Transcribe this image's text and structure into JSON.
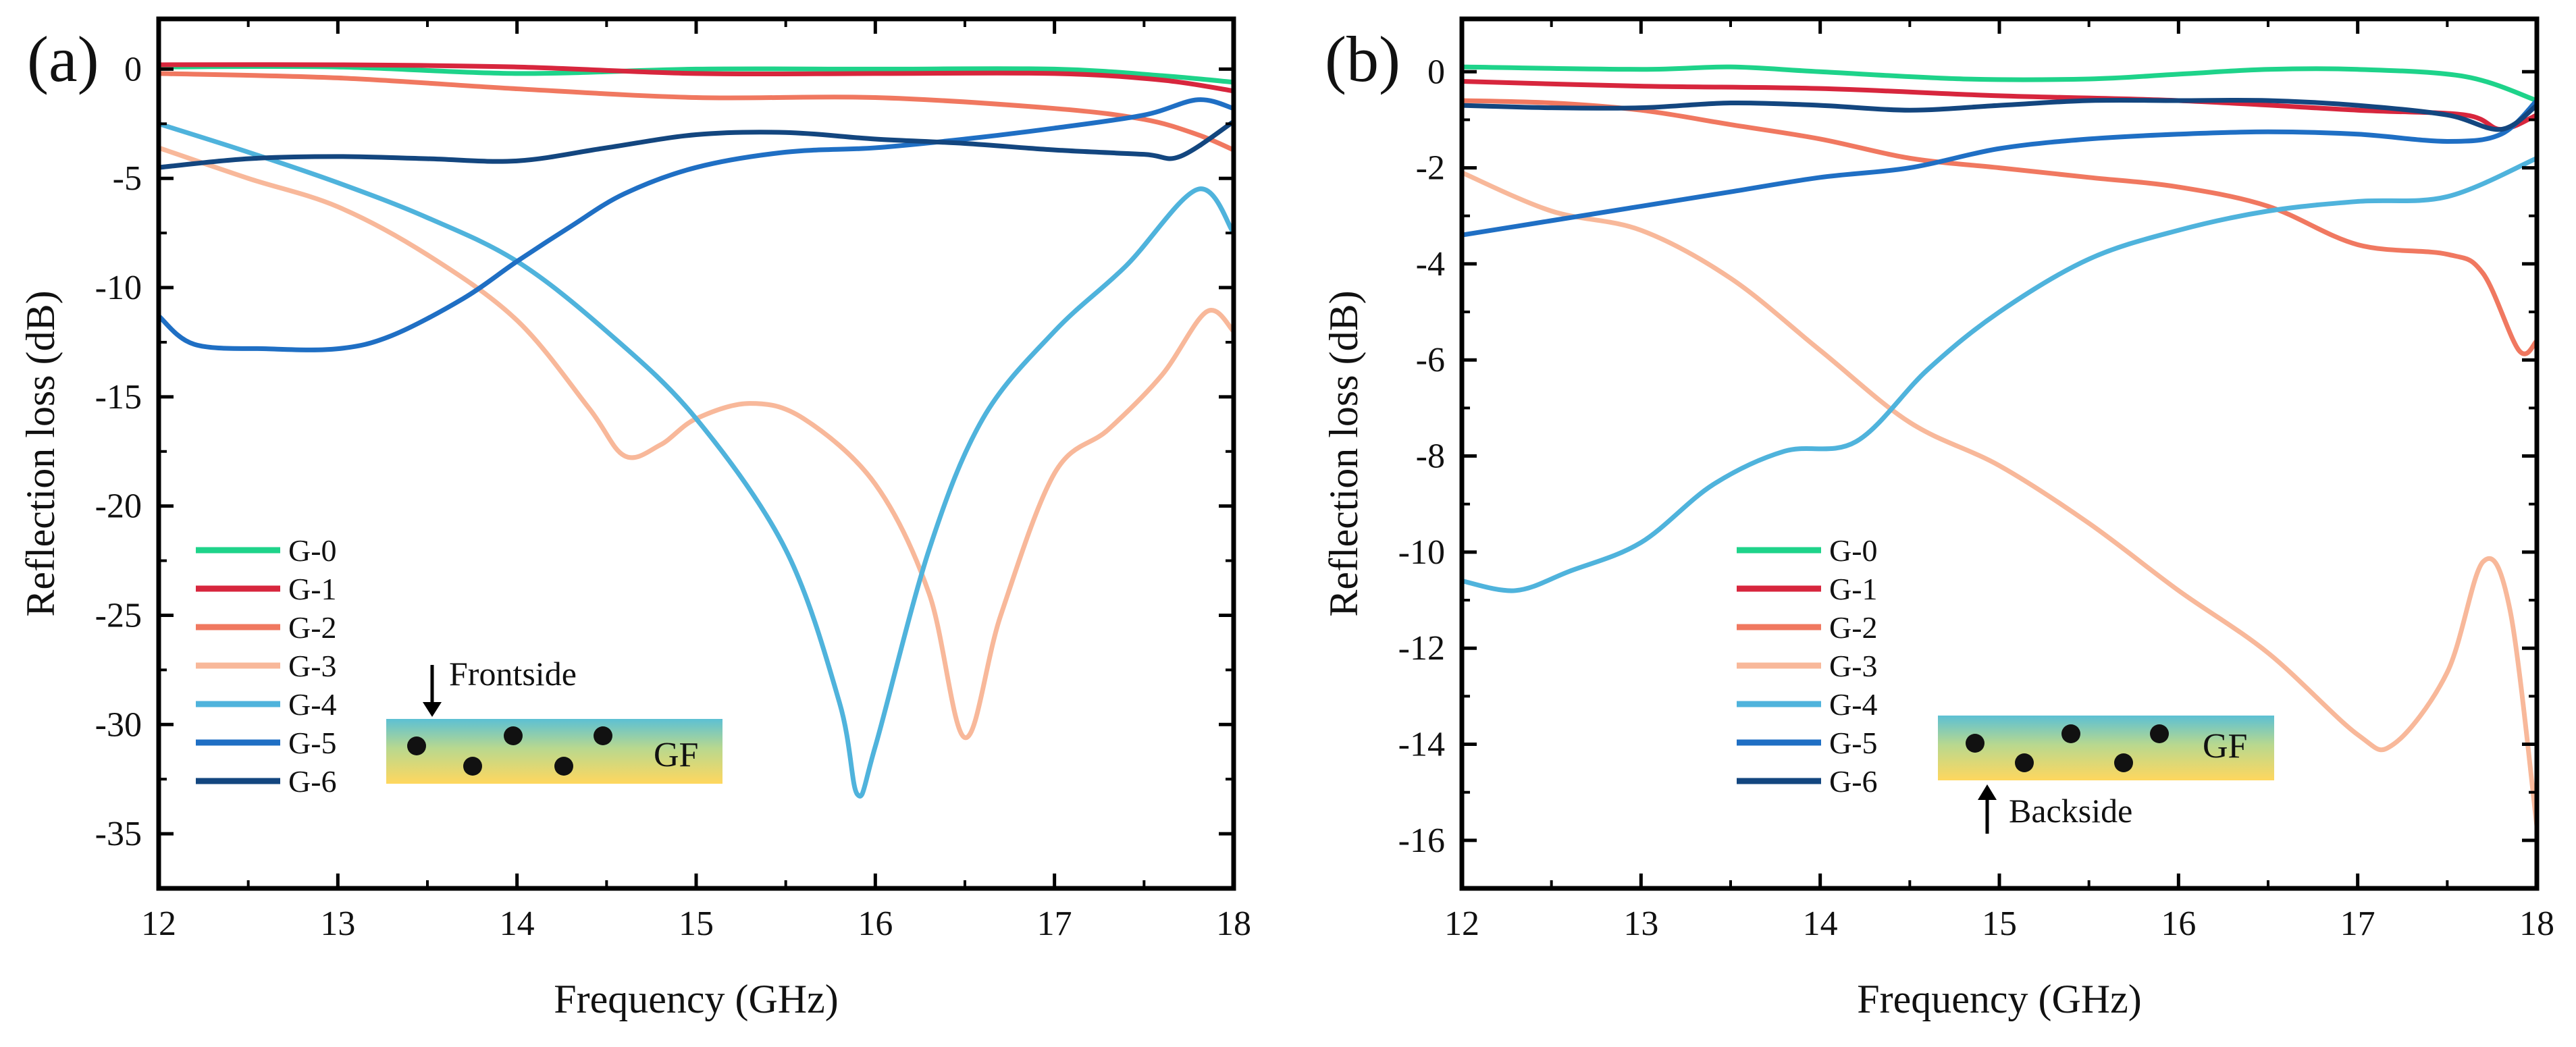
{
  "chart_data": [
    {
      "type": "line",
      "panel_label": "(a)",
      "xlabel": "Frequency (GHz)",
      "ylabel": "Reflection loss (dB)",
      "xlim": [
        12,
        18
      ],
      "ylim": [
        -37.5,
        2.3
      ],
      "xticks": [
        12,
        13,
        14,
        15,
        16,
        17,
        18
      ],
      "yticks": [
        0,
        -5,
        -10,
        -15,
        -20,
        -25,
        -30,
        -35
      ],
      "legend_position": "bottom-left",
      "series": [
        {
          "name": "G-0",
          "color": "#1ed38a",
          "points": [
            [
              12,
              0.1
            ],
            [
              13,
              0.1
            ],
            [
              14,
              -0.2
            ],
            [
              15,
              0
            ],
            [
              16,
              0
            ],
            [
              17,
              0
            ],
            [
              17.6,
              -0.3
            ],
            [
              18,
              -0.6
            ]
          ]
        },
        {
          "name": "G-1",
          "color": "#d7263d",
          "points": [
            [
              12,
              0.2
            ],
            [
              13,
              0.2
            ],
            [
              14,
              0.1
            ],
            [
              15,
              -0.2
            ],
            [
              16,
              -0.2
            ],
            [
              17,
              -0.2
            ],
            [
              17.6,
              -0.5
            ],
            [
              18,
              -1
            ]
          ]
        },
        {
          "name": "G-2",
          "color": "#f07860",
          "points": [
            [
              12,
              -0.2
            ],
            [
              13,
              -0.4
            ],
            [
              14,
              -0.9
            ],
            [
              15,
              -1.3
            ],
            [
              16,
              -1.3
            ],
            [
              17,
              -1.8
            ],
            [
              17.5,
              -2.3
            ],
            [
              17.8,
              -3
            ],
            [
              18,
              -3.7
            ]
          ]
        },
        {
          "name": "G-3",
          "color": "#f8b89a",
          "points": [
            [
              12,
              -3.6
            ],
            [
              12.5,
              -5
            ],
            [
              13,
              -6.3
            ],
            [
              13.5,
              -8.5
            ],
            [
              14,
              -11.5
            ],
            [
              14.4,
              -15.5
            ],
            [
              14.6,
              -17.7
            ],
            [
              14.8,
              -17.2
            ],
            [
              15,
              -16
            ],
            [
              15.3,
              -15.3
            ],
            [
              15.6,
              -16
            ],
            [
              16,
              -19
            ],
            [
              16.3,
              -24
            ],
            [
              16.5,
              -30.6
            ],
            [
              16.7,
              -25
            ],
            [
              17,
              -18.5
            ],
            [
              17.3,
              -16.5
            ],
            [
              17.6,
              -14
            ],
            [
              17.85,
              -11.1
            ],
            [
              18,
              -12
            ]
          ]
        },
        {
          "name": "G-4",
          "color": "#4fb3dc",
          "points": [
            [
              12,
              -2.5
            ],
            [
              12.5,
              -3.8
            ],
            [
              13,
              -5.2
            ],
            [
              13.5,
              -6.8
            ],
            [
              14,
              -8.8
            ],
            [
              14.5,
              -12
            ],
            [
              15,
              -16
            ],
            [
              15.5,
              -22
            ],
            [
              15.8,
              -29
            ],
            [
              15.9,
              -33.2
            ],
            [
              16,
              -31
            ],
            [
              16.3,
              -22
            ],
            [
              16.6,
              -16
            ],
            [
              17,
              -12
            ],
            [
              17.4,
              -9
            ],
            [
              17.8,
              -5.5
            ],
            [
              18,
              -7.5
            ]
          ]
        },
        {
          "name": "G-5",
          "color": "#1f6fc4",
          "points": [
            [
              12,
              -11.3
            ],
            [
              12.2,
              -12.6
            ],
            [
              12.6,
              -12.8
            ],
            [
              13,
              -12.8
            ],
            [
              13.3,
              -12.2
            ],
            [
              13.7,
              -10.5
            ],
            [
              14,
              -8.8
            ],
            [
              14.3,
              -7.2
            ],
            [
              14.6,
              -5.7
            ],
            [
              15,
              -4.5
            ],
            [
              15.5,
              -3.8
            ],
            [
              16,
              -3.6
            ],
            [
              16.5,
              -3.2
            ],
            [
              17,
              -2.7
            ],
            [
              17.5,
              -2.1
            ],
            [
              17.8,
              -1.4
            ],
            [
              18,
              -1.8
            ]
          ]
        },
        {
          "name": "G-6",
          "color": "#13467f",
          "points": [
            [
              12,
              -4.5
            ],
            [
              12.5,
              -4.1
            ],
            [
              13,
              -4
            ],
            [
              13.5,
              -4.1
            ],
            [
              14,
              -4.2
            ],
            [
              14.5,
              -3.6
            ],
            [
              15,
              -3
            ],
            [
              15.5,
              -2.9
            ],
            [
              16,
              -3.2
            ],
            [
              16.5,
              -3.4
            ],
            [
              17,
              -3.7
            ],
            [
              17.5,
              -3.9
            ],
            [
              17.7,
              -4
            ],
            [
              18,
              -2.4
            ]
          ]
        }
      ],
      "inset": {
        "arrow_label": "Frontside",
        "layer_label": "GF"
      }
    },
    {
      "type": "line",
      "panel_label": "(b)",
      "xlabel": "Frequency (GHz)",
      "ylabel": "Reflection loss (dB)",
      "xlim": [
        12,
        18
      ],
      "ylim": [
        -17,
        1.1
      ],
      "xticks": [
        12,
        13,
        14,
        15,
        16,
        17,
        18
      ],
      "yticks": [
        0,
        -2,
        -4,
        -6,
        -8,
        -10,
        -12,
        -14,
        -16
      ],
      "legend_position": "bottom-center",
      "series": [
        {
          "name": "G-0",
          "color": "#1ed38a",
          "points": [
            [
              12,
              0.1
            ],
            [
              13,
              0.05
            ],
            [
              13.5,
              0.1
            ],
            [
              14,
              0
            ],
            [
              14.8,
              -0.15
            ],
            [
              15.5,
              -0.15
            ],
            [
              16,
              -0.05
            ],
            [
              16.5,
              0.05
            ],
            [
              17,
              0.05
            ],
            [
              17.6,
              -0.1
            ],
            [
              18,
              -0.6
            ]
          ]
        },
        {
          "name": "G-1",
          "color": "#d7263d",
          "points": [
            [
              12,
              -0.2
            ],
            [
              13,
              -0.3
            ],
            [
              14,
              -0.35
            ],
            [
              15,
              -0.5
            ],
            [
              16,
              -0.6
            ],
            [
              17,
              -0.8
            ],
            [
              17.6,
              -0.9
            ],
            [
              17.8,
              -1.2
            ],
            [
              18,
              -0.9
            ]
          ]
        },
        {
          "name": "G-2",
          "color": "#f07860",
          "points": [
            [
              12,
              -0.6
            ],
            [
              12.5,
              -0.65
            ],
            [
              13,
              -0.8
            ],
            [
              13.5,
              -1.1
            ],
            [
              14,
              -1.4
            ],
            [
              14.5,
              -1.8
            ],
            [
              15,
              -2
            ],
            [
              15.5,
              -2.2
            ],
            [
              16,
              -2.4
            ],
            [
              16.5,
              -2.8
            ],
            [
              17,
              -3.6
            ],
            [
              17.5,
              -3.8
            ],
            [
              17.7,
              -4.2
            ],
            [
              17.9,
              -5.8
            ],
            [
              18,
              -5.6
            ]
          ]
        },
        {
          "name": "G-3",
          "color": "#f8b89a",
          "points": [
            [
              12,
              -2.1
            ],
            [
              12.5,
              -2.9
            ],
            [
              13,
              -3.3
            ],
            [
              13.5,
              -4.3
            ],
            [
              14,
              -5.8
            ],
            [
              14.5,
              -7.3
            ],
            [
              15,
              -8.2
            ],
            [
              15.5,
              -9.4
            ],
            [
              16,
              -10.8
            ],
            [
              16.5,
              -12.1
            ],
            [
              17,
              -13.8
            ],
            [
              17.2,
              -14
            ],
            [
              17.5,
              -12.5
            ],
            [
              17.7,
              -10.2
            ],
            [
              17.85,
              -11.2
            ],
            [
              18,
              -15.7
            ]
          ]
        },
        {
          "name": "G-4",
          "color": "#4fb3dc",
          "points": [
            [
              12,
              -10.6
            ],
            [
              12.3,
              -10.8
            ],
            [
              12.6,
              -10.4
            ],
            [
              13,
              -9.8
            ],
            [
              13.4,
              -8.6
            ],
            [
              13.8,
              -7.9
            ],
            [
              14.2,
              -7.7
            ],
            [
              14.6,
              -6.2
            ],
            [
              15,
              -5
            ],
            [
              15.5,
              -3.9
            ],
            [
              16,
              -3.3
            ],
            [
              16.5,
              -2.9
            ],
            [
              17,
              -2.7
            ],
            [
              17.5,
              -2.6
            ],
            [
              18,
              -1.8
            ]
          ]
        },
        {
          "name": "G-5",
          "color": "#1f6fc4",
          "points": [
            [
              12,
              -3.4
            ],
            [
              12.5,
              -3.1
            ],
            [
              13,
              -2.8
            ],
            [
              13.5,
              -2.5
            ],
            [
              14,
              -2.2
            ],
            [
              14.5,
              -2
            ],
            [
              15,
              -1.6
            ],
            [
              15.5,
              -1.4
            ],
            [
              16,
              -1.3
            ],
            [
              16.5,
              -1.25
            ],
            [
              17,
              -1.3
            ],
            [
              17.5,
              -1.45
            ],
            [
              17.8,
              -1.3
            ],
            [
              18,
              -0.6
            ]
          ]
        },
        {
          "name": "G-6",
          "color": "#13467f",
          "points": [
            [
              12,
              -0.7
            ],
            [
              12.5,
              -0.75
            ],
            [
              13,
              -0.75
            ],
            [
              13.5,
              -0.65
            ],
            [
              14,
              -0.7
            ],
            [
              14.5,
              -0.8
            ],
            [
              15,
              -0.7
            ],
            [
              15.5,
              -0.6
            ],
            [
              16,
              -0.6
            ],
            [
              16.5,
              -0.6
            ],
            [
              17,
              -0.7
            ],
            [
              17.5,
              -0.9
            ],
            [
              17.8,
              -1.2
            ],
            [
              18,
              -0.7
            ]
          ]
        }
      ],
      "inset": {
        "arrow_label": "Backside",
        "layer_label": "GF"
      }
    }
  ]
}
